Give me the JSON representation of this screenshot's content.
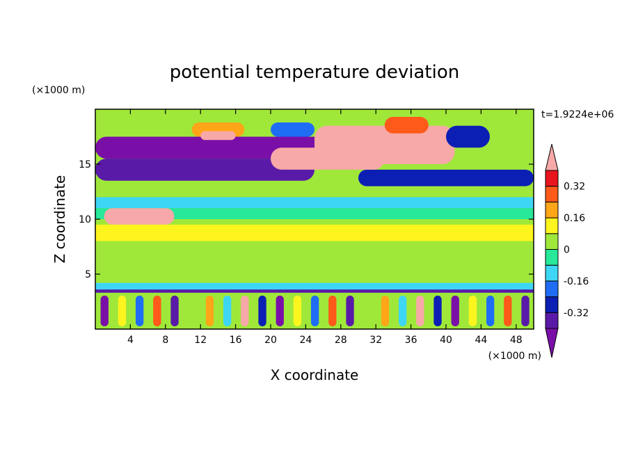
{
  "chart_data": {
    "type": "heatmap",
    "title": "potential temperature deviation",
    "xlabel": "X coordinate",
    "ylabel": "Z coordinate",
    "x_units": "(×1000 m)",
    "y_units": "(×1000 m)",
    "time_label": "t=1.9224e+06",
    "xlim": [
      0,
      50
    ],
    "ylim": [
      0,
      20
    ],
    "x_ticks": [
      4,
      8,
      12,
      16,
      20,
      24,
      28,
      32,
      36,
      40,
      44,
      48
    ],
    "y_ticks": [
      5,
      10,
      15
    ],
    "colorbar": {
      "levels": [
        -0.4,
        -0.32,
        -0.24,
        -0.16,
        -0.08,
        0,
        0.08,
        0.16,
        0.24,
        0.32,
        0.4
      ],
      "labels": [
        "0.32",
        "0.16",
        "0",
        "-0.16",
        "-0.32"
      ],
      "label_values": [
        0.32,
        0.16,
        0,
        -0.16,
        -0.32
      ],
      "colors": [
        "#7a0fa8",
        "#5a1aa8",
        "#0c1fb4",
        "#1f6df5",
        "#3ed6f5",
        "#28e89a",
        "#9fe83a",
        "#fff51e",
        "#ffa518",
        "#ff5a1a",
        "#e8141e",
        "#f7a8a8"
      ],
      "extend": "both"
    },
    "regions": [
      {
        "x": [
          0,
          50
        ],
        "z": [
          0,
          20
        ],
        "value": 0
      },
      {
        "x": [
          0,
          50
        ],
        "z": [
          19.2,
          20
        ],
        "value": 0.04
      },
      {
        "x": [
          0,
          24
        ],
        "z": [
          18.5,
          19.5
        ],
        "value": 0.06
      },
      {
        "x": [
          0,
          30
        ],
        "z": [
          15.5,
          17.5
        ],
        "value": -0.45
      },
      {
        "x": [
          0,
          25
        ],
        "z": [
          13.5,
          15.5
        ],
        "value": -0.36
      },
      {
        "x": [
          30,
          50
        ],
        "z": [
          13.0,
          14.5
        ],
        "value": -0.3
      },
      {
        "x": [
          11,
          17
        ],
        "z": [
          17.5,
          18.8
        ],
        "value": 0.2
      },
      {
        "x": [
          12,
          16
        ],
        "z": [
          17.2,
          18.0
        ],
        "value": 0.45
      },
      {
        "x": [
          25,
          41
        ],
        "z": [
          15.0,
          18.5
        ],
        "value": 0.45
      },
      {
        "x": [
          20,
          33
        ],
        "z": [
          14.5,
          16.5
        ],
        "value": 0.45
      },
      {
        "x": [
          33,
          38
        ],
        "z": [
          17.8,
          19.3
        ],
        "value": 0.28
      },
      {
        "x": [
          40,
          45
        ],
        "z": [
          16.5,
          18.5
        ],
        "value": -0.28
      },
      {
        "x": [
          20,
          25
        ],
        "z": [
          17.5,
          18.8
        ],
        "value": -0.2
      },
      {
        "x": [
          0,
          50
        ],
        "z": [
          11.0,
          12.0
        ],
        "value": -0.12
      },
      {
        "x": [
          0,
          50
        ],
        "z": [
          10.0,
          11.0
        ],
        "value": -0.05
      },
      {
        "x": [
          1,
          9
        ],
        "z": [
          9.5,
          11.0
        ],
        "value": 0.45
      },
      {
        "x": [
          0,
          50
        ],
        "z": [
          8.0,
          9.5
        ],
        "value": 0.08
      },
      {
        "x": [
          0,
          50
        ],
        "z": [
          4.5,
          8.0
        ],
        "value": 0.06
      },
      {
        "x": [
          0,
          50
        ],
        "z": [
          3.5,
          4.2
        ],
        "value": -0.15
      },
      {
        "x": [
          0,
          50
        ],
        "z": [
          3.3,
          3.6
        ],
        "value": -0.35
      },
      {
        "x": [
          0,
          50
        ],
        "z": [
          0,
          3.3
        ],
        "value": 0.0
      }
    ]
  }
}
